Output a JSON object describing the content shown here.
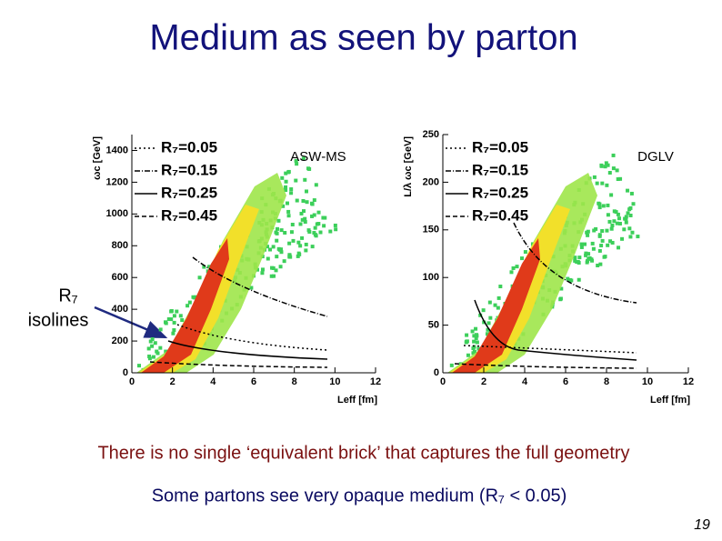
{
  "title": "Medium as seen by parton",
  "panels": [
    {
      "label": "ASW-MS",
      "y_axis_label": "ωc [GeV]",
      "x_axis_label": "Leff [fm]",
      "xlim": [
        0,
        12
      ],
      "xticks": [
        0,
        2,
        4,
        6,
        8,
        10,
        12
      ],
      "ylim": [
        0,
        1500
      ],
      "yticks": [
        0,
        200,
        400,
        600,
        800,
        1000,
        1200,
        1400
      ],
      "legend": [
        "R₇=0.05",
        "R₇=0.15",
        "R₇=0.25",
        "R₇=0.45"
      ]
    },
    {
      "label": "DGLV",
      "y_axis_label": "L/λ ωc [GeV]",
      "x_axis_label": "Leff [fm]",
      "xlim": [
        0,
        12
      ],
      "xticks": [
        0,
        2,
        4,
        6,
        8,
        10,
        12
      ],
      "ylim": [
        0,
        250
      ],
      "yticks": [
        0,
        50,
        100,
        150,
        200,
        250
      ],
      "legend": [
        "R₇=0.05",
        "R₇=0.15",
        "R₇=0.25",
        "R₇=0.45"
      ]
    }
  ],
  "annotation": [
    "R₇",
    "isolines"
  ],
  "statement": "There is no single ‘equivalent brick’ that captures the full geometry",
  "note": "Some partons see very opaque medium (R₇ < 0.05)",
  "page_number": "19"
}
